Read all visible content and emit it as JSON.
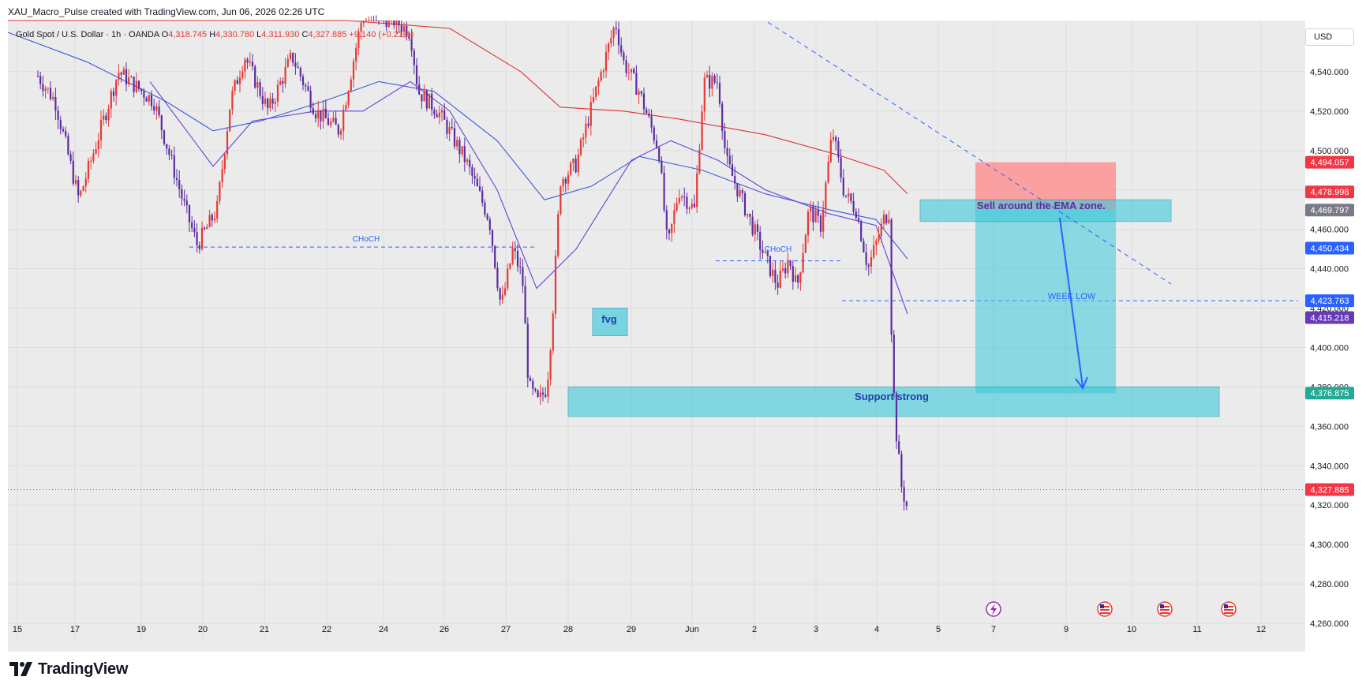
{
  "header": {
    "text": "XAU_Macro_Pulse created with TradingView.com, Jun 06, 2026 02:26 UTC"
  },
  "legend": {
    "symbol": "Gold Spot / U.S. Dollar · 1h · OANDA",
    "open_label": "O",
    "open": "4,318.745",
    "high_label": "H",
    "high": "4,330.780",
    "low_label": "L",
    "low": "4,311.930",
    "close_label": "C",
    "close": "4,327.885",
    "change": "+9.140 (+0.21%)"
  },
  "currency_button": "USD",
  "brand": {
    "name": "TradingView"
  },
  "colors": {
    "up": "#e53935",
    "down": "#5b2ca0",
    "ema_fast": "#3b5bdb",
    "ema_mid": "#6741d9",
    "ema_slow": "#e03131",
    "zone_teal": "#3bc9db",
    "zone_red": "#ff8787",
    "dash_blue": "#2962ff"
  },
  "chart_data": {
    "type": "candlestick",
    "symbol": "XAUUSD",
    "timeframe": "1h",
    "ylim": [
      4252,
      4566
    ],
    "y_ticks": [
      4260,
      4280,
      4300,
      4320,
      4340,
      4360,
      4380,
      4400,
      4420,
      4440,
      4460,
      4480,
      4500,
      4520,
      4540
    ],
    "y_tick_labels": [
      "4,260.000",
      "4,280.000",
      "4,300.000",
      "4,320.000",
      "4,340.000",
      "4,360.000",
      "4,380.000",
      "4,400.000",
      "4,420.000",
      "4,440.000",
      "4,460.000",
      "4,480.000",
      "4,500.000",
      "4,520.000",
      "4,540.000"
    ],
    "x_labels": [
      "15",
      "17",
      "19",
      "20",
      "21",
      "22",
      "24",
      "26",
      "27",
      "28",
      "29",
      "Jun",
      "2",
      "3",
      "4",
      "5",
      "7",
      "9",
      "10",
      "11",
      "12"
    ],
    "price_path": [
      [
        0,
        4560
      ],
      [
        60,
        4525
      ],
      [
        90,
        4475
      ],
      [
        140,
        4540
      ],
      [
        185,
        4525
      ],
      [
        225,
        4470
      ],
      [
        240,
        4452
      ],
      [
        265,
        4470
      ],
      [
        282,
        4525
      ],
      [
        300,
        4548
      ],
      [
        330,
        4520
      ],
      [
        360,
        4548
      ],
      [
        390,
        4520
      ],
      [
        420,
        4510
      ],
      [
        450,
        4570
      ],
      [
        490,
        4566
      ],
      [
        510,
        4560
      ],
      [
        520,
        4530
      ],
      [
        545,
        4520
      ],
      [
        580,
        4495
      ],
      [
        610,
        4465
      ],
      [
        625,
        4420
      ],
      [
        640,
        4450
      ],
      [
        652,
        4435
      ],
      [
        660,
        4380
      ],
      [
        672,
        4372
      ],
      [
        683,
        4380
      ],
      [
        690,
        4415
      ],
      [
        700,
        4485
      ],
      [
        720,
        4493
      ],
      [
        745,
        4530
      ],
      [
        770,
        4565
      ],
      [
        780,
        4545
      ],
      [
        800,
        4530
      ],
      [
        825,
        4500
      ],
      [
        836,
        4450
      ],
      [
        850,
        4480
      ],
      [
        870,
        4470
      ],
      [
        882,
        4535
      ],
      [
        900,
        4535
      ],
      [
        910,
        4495
      ],
      [
        935,
        4470
      ],
      [
        960,
        4445
      ],
      [
        975,
        4432
      ],
      [
        990,
        4445
      ],
      [
        1000,
        4430
      ],
      [
        1015,
        4470
      ],
      [
        1030,
        4462
      ],
      [
        1045,
        4510
      ],
      [
        1060,
        4478
      ],
      [
        1075,
        4470
      ],
      [
        1090,
        4440
      ],
      [
        1110,
        4465
      ],
      [
        1118,
        4470
      ],
      [
        1120,
        4395
      ],
      [
        1125,
        4360
      ],
      [
        1132,
        4330
      ],
      [
        1140,
        4318
      ]
    ],
    "emas": [
      {
        "name": "EMA fast",
        "color": "#3b5bdb",
        "points": [
          [
            0,
            4560
          ],
          [
            100,
            4545
          ],
          [
            200,
            4525
          ],
          [
            260,
            4510
          ],
          [
            320,
            4515
          ],
          [
            400,
            4525
          ],
          [
            470,
            4535
          ],
          [
            540,
            4530
          ],
          [
            620,
            4505
          ],
          [
            680,
            4475
          ],
          [
            740,
            4482
          ],
          [
            800,
            4497
          ],
          [
            880,
            4490
          ],
          [
            960,
            4478
          ],
          [
            1040,
            4470
          ],
          [
            1100,
            4465
          ],
          [
            1140,
            4445
          ]
        ]
      },
      {
        "name": "EMA mid",
        "color": "#6741d9",
        "points": [
          [
            180,
            4535
          ],
          [
            260,
            4492
          ],
          [
            310,
            4515
          ],
          [
            390,
            4520
          ],
          [
            450,
            4520
          ],
          [
            510,
            4535
          ],
          [
            560,
            4520
          ],
          [
            620,
            4480
          ],
          [
            670,
            4430
          ],
          [
            720,
            4450
          ],
          [
            790,
            4495
          ],
          [
            840,
            4505
          ],
          [
            900,
            4495
          ],
          [
            960,
            4480
          ],
          [
            1040,
            4468
          ],
          [
            1100,
            4462
          ],
          [
            1140,
            4417
          ]
        ]
      },
      {
        "name": "EMA slow",
        "color": "#e03131",
        "points": [
          [
            0,
            4580
          ],
          [
            150,
            4585
          ],
          [
            280,
            4580
          ],
          [
            430,
            4570
          ],
          [
            560,
            4562
          ],
          [
            650,
            4540
          ],
          [
            700,
            4522
          ],
          [
            780,
            4520
          ],
          [
            850,
            4516
          ],
          [
            960,
            4508
          ],
          [
            1050,
            4498
          ],
          [
            1110,
            4490
          ],
          [
            1140,
            4478
          ]
        ]
      }
    ],
    "annotations": {
      "choch": "CHoCH",
      "fvg": "fvg",
      "week_low": "WEEK LOW",
      "support": "Support strong",
      "sell_note": "Sell around the EMA zone.",
      "choch_1_level": 4451,
      "choch_2_level": 4444,
      "week_low_level": 4423.763,
      "support_zone": [
        4365,
        4380
      ],
      "ema_zone": [
        4464,
        4475
      ],
      "short_entry": 4469.797,
      "short_stop": 4494.057,
      "short_target": 4376.875,
      "fvg_zone": [
        4406,
        4420
      ]
    },
    "price_labels": [
      {
        "value": "4,494.057",
        "price": 4494.057,
        "color": "#f23645"
      },
      {
        "value": "4,478.998",
        "price": 4478.998,
        "color": "#f23645"
      },
      {
        "value": "4,469.797",
        "price": 4469.797,
        "color": "#787b86"
      },
      {
        "value": "4,450.434",
        "price": 4450.434,
        "color": "#2962ff"
      },
      {
        "value": "4,423.763",
        "price": 4423.763,
        "color": "#2962ff"
      },
      {
        "value": "4,415.218",
        "price": 4415.218,
        "color": "#673ab7"
      },
      {
        "value": "4,376.875",
        "price": 4376.875,
        "color": "#22ab94"
      },
      {
        "value": "4,327.885",
        "price": 4327.885,
        "color": "#f23645"
      }
    ],
    "grid": true
  }
}
